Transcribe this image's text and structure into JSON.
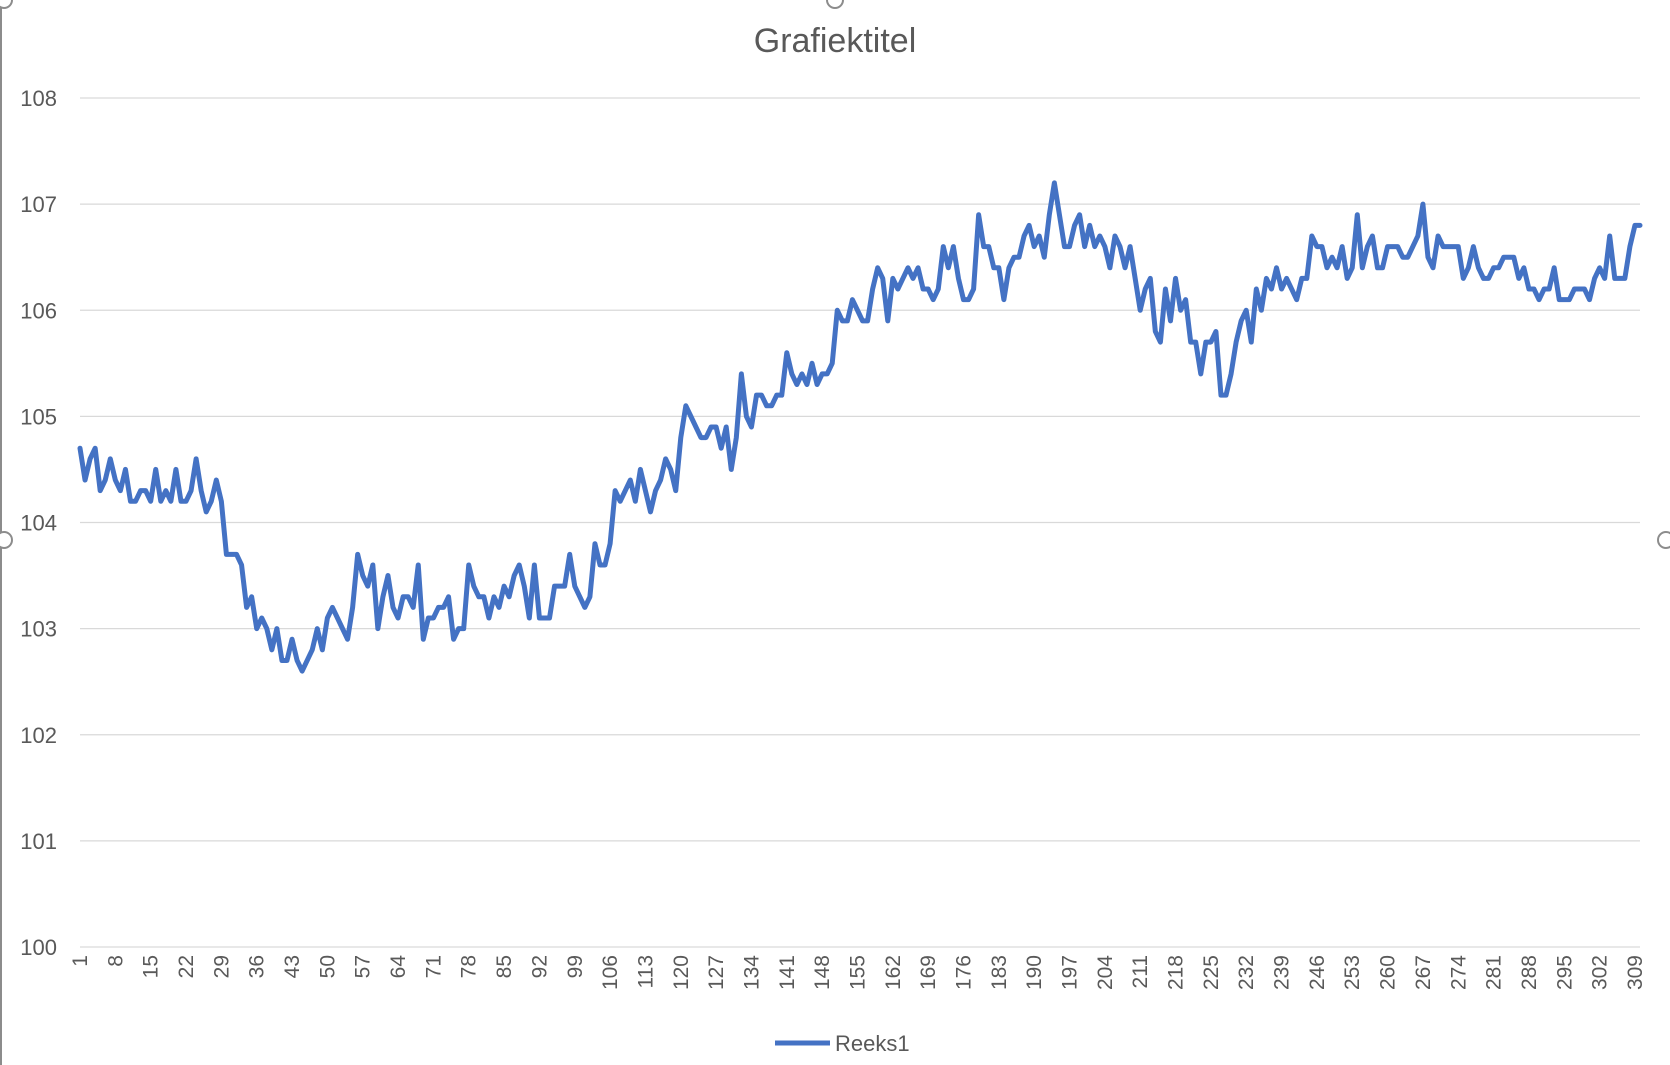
{
  "chart_data": {
    "type": "line",
    "title": "Grafiektitel",
    "xlabel": "",
    "ylabel": "",
    "ylim": [
      100,
      108
    ],
    "yticks": [
      100,
      101,
      102,
      103,
      104,
      105,
      106,
      107,
      108
    ],
    "xticks": [
      1,
      8,
      15,
      22,
      29,
      36,
      43,
      50,
      57,
      64,
      71,
      78,
      85,
      92,
      99,
      106,
      113,
      120,
      127,
      134,
      141,
      148,
      155,
      162,
      169,
      176,
      183,
      190,
      197,
      204,
      211,
      218,
      225,
      232,
      239,
      246,
      253,
      260,
      267,
      274,
      281,
      288,
      295,
      302,
      309
    ],
    "x_range": [
      1,
      310
    ],
    "grid": true,
    "legend_position": "bottom",
    "color": "#4472c4",
    "series": [
      {
        "name": "Reeks1",
        "values": [
          104.7,
          104.4,
          104.6,
          104.7,
          104.3,
          104.4,
          104.6,
          104.4,
          104.3,
          104.5,
          104.2,
          104.2,
          104.3,
          104.3,
          104.2,
          104.5,
          104.2,
          104.3,
          104.2,
          104.5,
          104.2,
          104.2,
          104.3,
          104.6,
          104.3,
          104.1,
          104.2,
          104.4,
          104.2,
          103.7,
          103.7,
          103.7,
          103.6,
          103.2,
          103.3,
          103.0,
          103.1,
          103.0,
          102.8,
          103.0,
          102.7,
          102.7,
          102.9,
          102.7,
          102.6,
          102.7,
          102.8,
          103.0,
          102.8,
          103.1,
          103.2,
          103.1,
          103.0,
          102.9,
          103.2,
          103.7,
          103.5,
          103.4,
          103.6,
          103.0,
          103.3,
          103.5,
          103.2,
          103.1,
          103.3,
          103.3,
          103.2,
          103.6,
          102.9,
          103.1,
          103.1,
          103.2,
          103.2,
          103.3,
          102.9,
          103.0,
          103.0,
          103.6,
          103.4,
          103.3,
          103.3,
          103.1,
          103.3,
          103.2,
          103.4,
          103.3,
          103.5,
          103.6,
          103.4,
          103.1,
          103.6,
          103.1,
          103.1,
          103.1,
          103.4,
          103.4,
          103.4,
          103.7,
          103.4,
          103.3,
          103.2,
          103.3,
          103.8,
          103.6,
          103.6,
          103.8,
          104.3,
          104.2,
          104.3,
          104.4,
          104.2,
          104.5,
          104.3,
          104.1,
          104.3,
          104.4,
          104.6,
          104.5,
          104.3,
          104.8,
          105.1,
          105.0,
          104.9,
          104.8,
          104.8,
          104.9,
          104.9,
          104.7,
          104.9,
          104.5,
          104.8,
          105.4,
          105.0,
          104.9,
          105.2,
          105.2,
          105.1,
          105.1,
          105.2,
          105.2,
          105.6,
          105.4,
          105.3,
          105.4,
          105.3,
          105.5,
          105.3,
          105.4,
          105.4,
          105.5,
          106.0,
          105.9,
          105.9,
          106.1,
          106.0,
          105.9,
          105.9,
          106.2,
          106.4,
          106.3,
          105.9,
          106.3,
          106.2,
          106.3,
          106.4,
          106.3,
          106.4,
          106.2,
          106.2,
          106.1,
          106.2,
          106.6,
          106.4,
          106.6,
          106.3,
          106.1,
          106.1,
          106.2,
          106.9,
          106.6,
          106.6,
          106.4,
          106.4,
          106.1,
          106.4,
          106.5,
          106.5,
          106.7,
          106.8,
          106.6,
          106.7,
          106.5,
          106.9,
          107.2,
          106.9,
          106.6,
          106.6,
          106.8,
          106.9,
          106.6,
          106.8,
          106.6,
          106.7,
          106.6,
          106.4,
          106.7,
          106.6,
          106.4,
          106.6,
          106.3,
          106.0,
          106.2,
          106.3,
          105.8,
          105.7,
          106.2,
          105.9,
          106.3,
          106.0,
          106.1,
          105.7,
          105.7,
          105.4,
          105.7,
          105.7,
          105.8,
          105.2,
          105.2,
          105.4,
          105.7,
          105.9,
          106.0,
          105.7,
          106.2,
          106.0,
          106.3,
          106.2,
          106.4,
          106.2,
          106.3,
          106.2,
          106.1,
          106.3,
          106.3,
          106.7,
          106.6,
          106.6,
          106.4,
          106.5,
          106.4,
          106.6,
          106.3,
          106.4,
          106.9,
          106.4,
          106.6,
          106.7,
          106.4,
          106.4,
          106.6,
          106.6,
          106.6,
          106.5,
          106.5,
          106.6,
          106.7,
          107.0,
          106.5,
          106.4,
          106.7,
          106.6,
          106.6,
          106.6,
          106.6,
          106.3,
          106.4,
          106.6,
          106.4,
          106.3,
          106.3,
          106.4,
          106.4,
          106.5,
          106.5,
          106.5,
          106.3,
          106.4,
          106.2,
          106.2,
          106.1,
          106.2,
          106.2,
          106.4,
          106.1,
          106.1,
          106.1,
          106.2,
          106.2,
          106.2,
          106.1,
          106.3,
          106.4,
          106.3,
          106.7,
          106.3,
          106.3,
          106.3,
          106.6,
          106.8,
          106.8
        ]
      }
    ]
  }
}
